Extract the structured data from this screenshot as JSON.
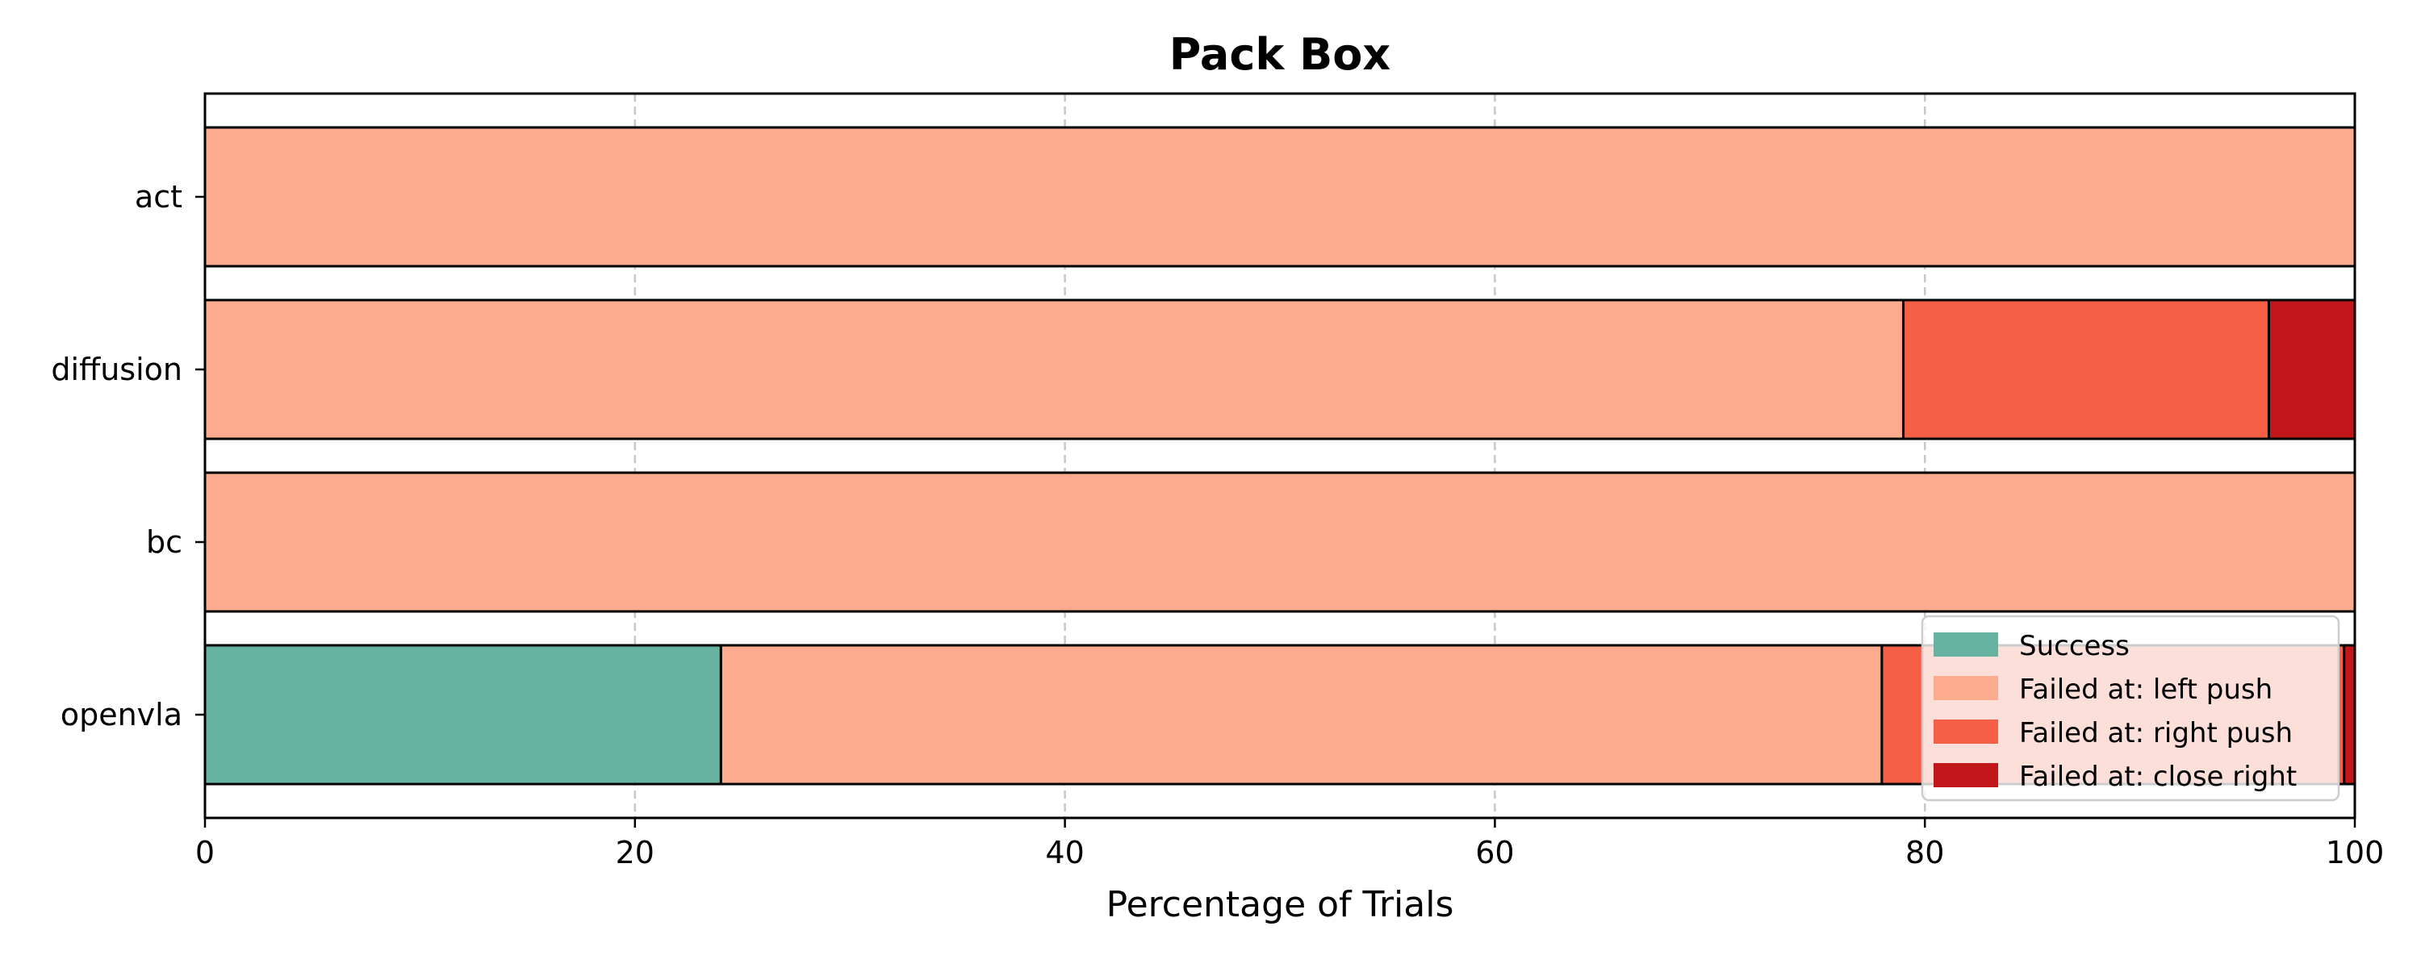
{
  "chart_data": {
    "type": "bar",
    "orientation": "horizontal",
    "stacked": true,
    "title": "Pack Box",
    "xlabel": "Percentage of Trials",
    "ylabel": "",
    "xlim": [
      0,
      100
    ],
    "x_ticks": [
      0,
      20,
      40,
      60,
      80,
      100
    ],
    "grid": "vertical dashed",
    "legend_position": "lower-right",
    "categories": [
      "act",
      "diffusion",
      "bc",
      "openvla"
    ],
    "series": [
      {
        "name": "Success",
        "color": "#67b3a2",
        "values": [
          0,
          0,
          0,
          24
        ]
      },
      {
        "name": "Failed at: left push",
        "color": "#fcab8f",
        "values": [
          100,
          79,
          100,
          54
        ]
      },
      {
        "name": "Failed at: right push",
        "color": "#f45f46",
        "values": [
          0,
          17,
          0,
          21.5
        ]
      },
      {
        "name": "Failed at: close right",
        "color": "#c3161b",
        "values": [
          0,
          4,
          0,
          0.5
        ]
      }
    ]
  }
}
